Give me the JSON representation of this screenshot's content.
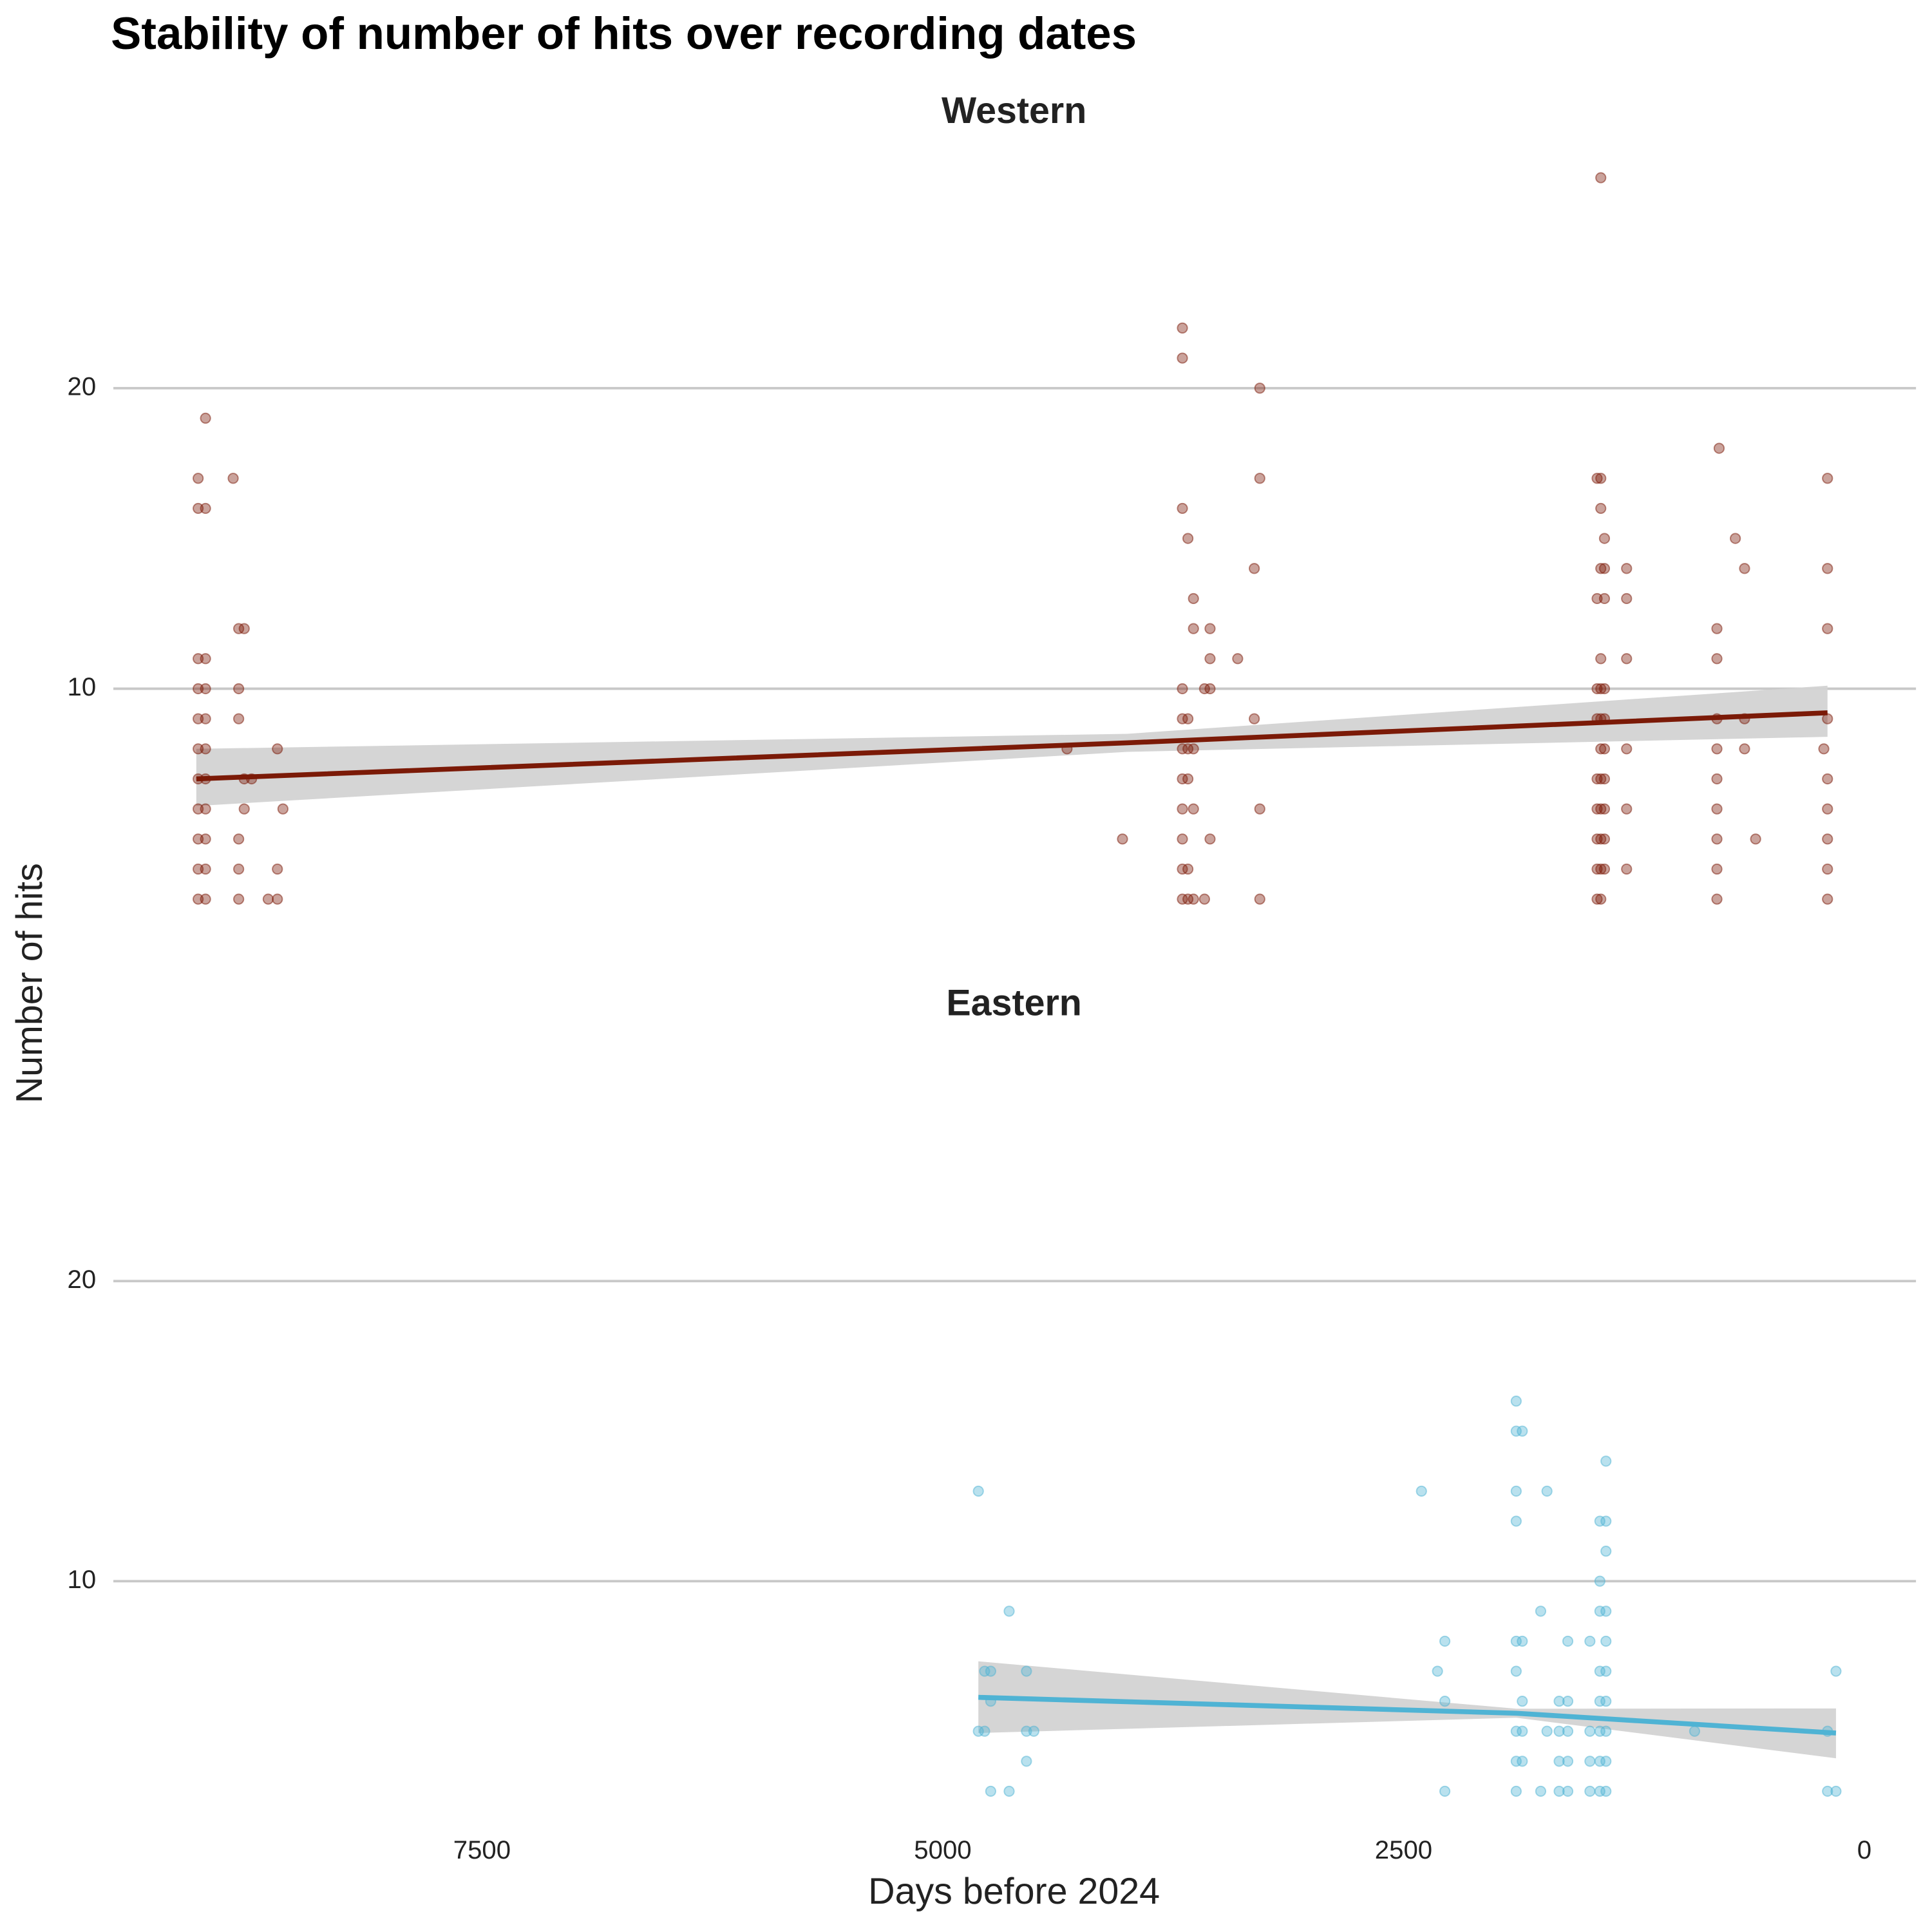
{
  "chart_data": {
    "type": "scatter",
    "title": "Stability of number of hits over recording dates",
    "x_label": "Days before 2024",
    "y_label": "Number of hits",
    "xlim": [
      9500,
      -280
    ],
    "xticks": [
      {
        "value": 7500,
        "label": "7500"
      },
      {
        "value": 5000,
        "label": "5000"
      },
      {
        "value": 2500,
        "label": "2500"
      },
      0
    ],
    "ylim": [
      1.8,
      28.2
    ],
    "yticks": [
      10,
      20
    ],
    "grid": true,
    "panels": [
      {
        "title": "Western",
        "color": "#7b1a07",
        "x": [
          9040,
          9040,
          9040,
          9040,
          9040,
          9040,
          9040,
          9040,
          9040,
          9040,
          9040,
          9000,
          9000,
          9000,
          9000,
          9000,
          9000,
          9000,
          9000,
          9000,
          9000,
          9000,
          8850,
          8820,
          8820,
          8820,
          8820,
          8820,
          8820,
          8790,
          8790,
          8790,
          8750,
          8610,
          8610,
          8610,
          8580,
          8660,
          4326,
          4025,
          3700,
          3700,
          3700,
          3700,
          3700,
          3700,
          3700,
          3700,
          3700,
          3700,
          3700,
          3670,
          3670,
          3670,
          3670,
          3670,
          3670,
          3640,
          3640,
          3640,
          3640,
          3640,
          3580,
          3580,
          3550,
          3550,
          3550,
          3550,
          3400,
          3310,
          3310,
          3280,
          3280,
          3280,
          3280,
          1450,
          1450,
          1450,
          1450,
          1450,
          1450,
          1450,
          1450,
          1450,
          1430,
          1430,
          1430,
          1430,
          1430,
          1430,
          1430,
          1430,
          1430,
          1430,
          1430,
          1430,
          1430,
          1410,
          1410,
          1410,
          1410,
          1410,
          1410,
          1410,
          1410,
          1410,
          1410,
          1290,
          1290,
          1290,
          1290,
          1290,
          1290,
          800,
          800,
          800,
          800,
          800,
          800,
          800,
          800,
          800,
          700,
          650,
          650,
          650,
          590,
          788,
          200,
          200,
          200,
          200,
          200,
          200,
          200,
          200,
          200,
          220
        ],
        "y": [
          17,
          16,
          11,
          10,
          9,
          8,
          7,
          6,
          5,
          4,
          3,
          19,
          16,
          11,
          10,
          9,
          8,
          7,
          6,
          5,
          4,
          3,
          17,
          12,
          10,
          9,
          5,
          4,
          3,
          12,
          7,
          6,
          7,
          8,
          4,
          3,
          6,
          3,
          8,
          5,
          22,
          21,
          16,
          10,
          9,
          8,
          7,
          6,
          5,
          4,
          3,
          15,
          9,
          8,
          7,
          4,
          3,
          13,
          12,
          8,
          6,
          3,
          10,
          3,
          12,
          11,
          10,
          5,
          11,
          14,
          9,
          20,
          17,
          6,
          3,
          17,
          13,
          10,
          9,
          7,
          6,
          5,
          4,
          3,
          27,
          17,
          16,
          14,
          11,
          10,
          9,
          8,
          7,
          6,
          5,
          4,
          3,
          15,
          14,
          13,
          10,
          9,
          8,
          7,
          6,
          5,
          4,
          14,
          13,
          11,
          8,
          6,
          4,
          12,
          11,
          9,
          8,
          7,
          6,
          5,
          4,
          3,
          15,
          14,
          9,
          8,
          5,
          18,
          17,
          14,
          12,
          9,
          7,
          6,
          5,
          4,
          3,
          8
        ],
        "fit": {
          "x": [
            9050,
            4000,
            200
          ],
          "y": [
            7.0,
            8.2,
            9.2
          ],
          "lower": [
            6.1,
            7.9,
            8.4
          ],
          "upper": [
            8.0,
            8.5,
            10.1
          ]
        }
      },
      {
        "title": "Eastern",
        "color": "#4fb3d4",
        "x": [
          4807,
          4807,
          4773,
          4773,
          4740,
          4740,
          4740,
          4640,
          4640,
          4546,
          4546,
          4546,
          4506,
          2403,
          2316,
          2276,
          2276,
          2276,
          1889,
          1889,
          1889,
          1889,
          1889,
          1889,
          1889,
          1889,
          1889,
          1856,
          1856,
          1856,
          1856,
          1856,
          1756,
          1756,
          1722,
          1722,
          1656,
          1656,
          1656,
          1656,
          1609,
          1609,
          1609,
          1609,
          1609,
          1489,
          1489,
          1489,
          1489,
          1435,
          1435,
          1435,
          1435,
          1435,
          1435,
          1435,
          1435,
          1402,
          1402,
          1402,
          1402,
          1402,
          1402,
          1402,
          1402,
          1402,
          1402,
          921,
          200,
          200,
          154,
          154
        ],
        "y": [
          13,
          5,
          7,
          5,
          7,
          6,
          3,
          9,
          3,
          7,
          5,
          4,
          5,
          13,
          7,
          8,
          6,
          3,
          16,
          15,
          13,
          12,
          8,
          7,
          5,
          4,
          3,
          15,
          8,
          6,
          5,
          4,
          9,
          3,
          13,
          5,
          6,
          5,
          4,
          3,
          8,
          6,
          5,
          4,
          3,
          8,
          5,
          4,
          3,
          12,
          10,
          9,
          7,
          6,
          5,
          4,
          3,
          14,
          12,
          11,
          9,
          8,
          7,
          6,
          5,
          4,
          3,
          5,
          5,
          3,
          7,
          3
        ],
        "fit": {
          "x": [
            4807,
            1889,
            154
          ],
          "y": [
            6.13,
            5.6,
            4.94
          ],
          "lower": [
            4.94,
            5.45,
            4.1
          ],
          "upper": [
            7.33,
            5.75,
            5.76
          ]
        }
      }
    ]
  }
}
